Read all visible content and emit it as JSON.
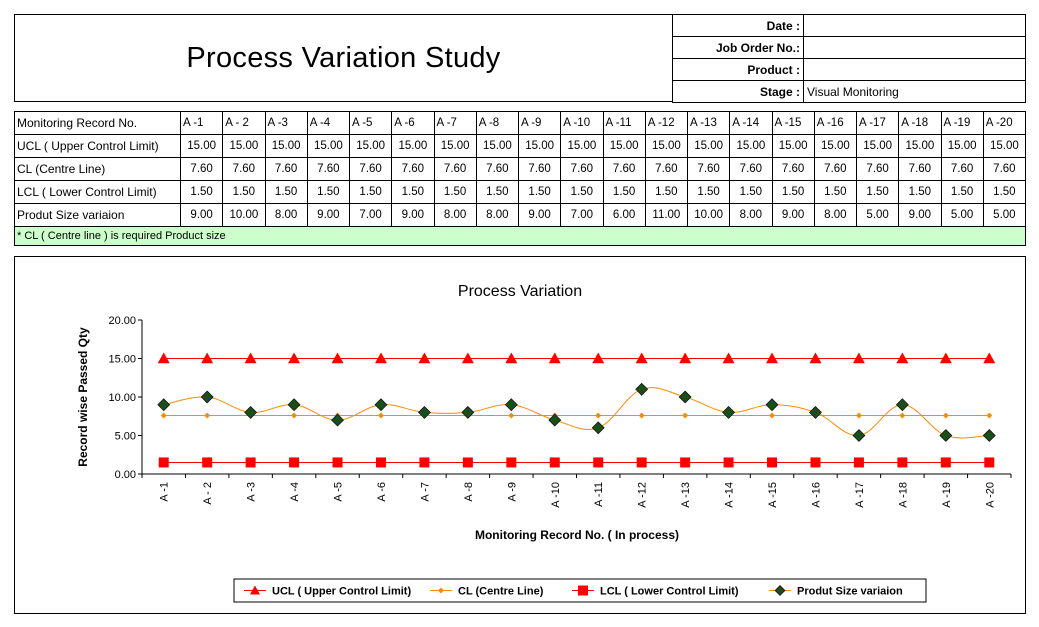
{
  "header": {
    "title": "Process Variation Study",
    "fields": [
      {
        "label": "Date :",
        "value": ""
      },
      {
        "label": "Job Order No.:",
        "value": ""
      },
      {
        "label": "Product :",
        "value": ""
      },
      {
        "label": "Stage :",
        "value": "Visual Monitoring"
      }
    ]
  },
  "table": {
    "header_label": "Monitoring Record No.",
    "records": [
      "A -1",
      "A - 2",
      "A -3",
      "A -4",
      "A -5",
      "A -6",
      "A -7",
      "A -8",
      "A -9",
      "A -10",
      "A -11",
      "A -12",
      "A -13",
      "A -14",
      "A -15",
      "A -16",
      "A -17",
      "A -18",
      "A -19",
      "A -20"
    ],
    "rows": [
      {
        "label": "UCL ( Upper Control Limit)",
        "values": [
          "15.00",
          "15.00",
          "15.00",
          "15.00",
          "15.00",
          "15.00",
          "15.00",
          "15.00",
          "15.00",
          "15.00",
          "15.00",
          "15.00",
          "15.00",
          "15.00",
          "15.00",
          "15.00",
          "15.00",
          "15.00",
          "15.00",
          "15.00"
        ]
      },
      {
        "label": "CL (Centre Line)",
        "values": [
          "7.60",
          "7.60",
          "7.60",
          "7.60",
          "7.60",
          "7.60",
          "7.60",
          "7.60",
          "7.60",
          "7.60",
          "7.60",
          "7.60",
          "7.60",
          "7.60",
          "7.60",
          "7.60",
          "7.60",
          "7.60",
          "7.60",
          "7.60"
        ]
      },
      {
        "label": "LCL ( Lower Control Limit)",
        "values": [
          "1.50",
          "1.50",
          "1.50",
          "1.50",
          "1.50",
          "1.50",
          "1.50",
          "1.50",
          "1.50",
          "1.50",
          "1.50",
          "1.50",
          "1.50",
          "1.50",
          "1.50",
          "1.50",
          "1.50",
          "1.50",
          "1.50",
          "1.50"
        ]
      },
      {
        "label": "Produt Size variaion",
        "values": [
          "9.00",
          "10.00",
          "8.00",
          "9.00",
          "7.00",
          "9.00",
          "8.00",
          "8.00",
          "9.00",
          "7.00",
          "6.00",
          "11.00",
          "10.00",
          "8.00",
          "9.00",
          "8.00",
          "5.00",
          "9.00",
          "5.00",
          "5.00"
        ]
      }
    ],
    "note": "* CL ( Centre line ) is required Product size"
  },
  "chart_data": {
    "type": "line",
    "title": "Process Variation",
    "xlabel": "Monitoring Record No. ( In process)",
    "ylabel": "Record wise Passed Qty",
    "ylim": [
      0,
      20
    ],
    "yticks": [
      "0.00",
      "5.00",
      "10.00",
      "15.00",
      "20.00"
    ],
    "categories": [
      "A -1",
      "A - 2",
      "A -3",
      "A -4",
      "A -5",
      "A -6",
      "A -7",
      "A -8",
      "A -9",
      "A -10",
      "A -11",
      "A -12",
      "A -13",
      "A -14",
      "A -15",
      "A -16",
      "A -17",
      "A -18",
      "A -19",
      "A -20"
    ],
    "legend_position": "bottom",
    "grid": false,
    "series": [
      {
        "name": "UCL ( Upper Control Limit)",
        "color": "#ff0000",
        "marker": "triangle",
        "smooth": false,
        "values": [
          15,
          15,
          15,
          15,
          15,
          15,
          15,
          15,
          15,
          15,
          15,
          15,
          15,
          15,
          15,
          15,
          15,
          15,
          15,
          15
        ]
      },
      {
        "name": "CL (Centre Line)",
        "color": "#ff8c00",
        "marker": "diamond-small",
        "smooth": false,
        "values": [
          7.6,
          7.6,
          7.6,
          7.6,
          7.6,
          7.6,
          7.6,
          7.6,
          7.6,
          7.6,
          7.6,
          7.6,
          7.6,
          7.6,
          7.6,
          7.6,
          7.6,
          7.6,
          7.6,
          7.6
        ]
      },
      {
        "name": "LCL ( Lower Control Limit)",
        "color": "#ff0000",
        "marker": "square",
        "smooth": false,
        "values": [
          1.5,
          1.5,
          1.5,
          1.5,
          1.5,
          1.5,
          1.5,
          1.5,
          1.5,
          1.5,
          1.5,
          1.5,
          1.5,
          1.5,
          1.5,
          1.5,
          1.5,
          1.5,
          1.5,
          1.5
        ]
      },
      {
        "name": "Produt Size variaion",
        "color": "#ff8c00",
        "marker_color": "#1a4d1a",
        "marker": "diamond",
        "smooth": true,
        "values": [
          9,
          10,
          8,
          9,
          7,
          9,
          8,
          8,
          9,
          7,
          6,
          11,
          10,
          8,
          9,
          8,
          5,
          9,
          5,
          5
        ]
      }
    ]
  }
}
